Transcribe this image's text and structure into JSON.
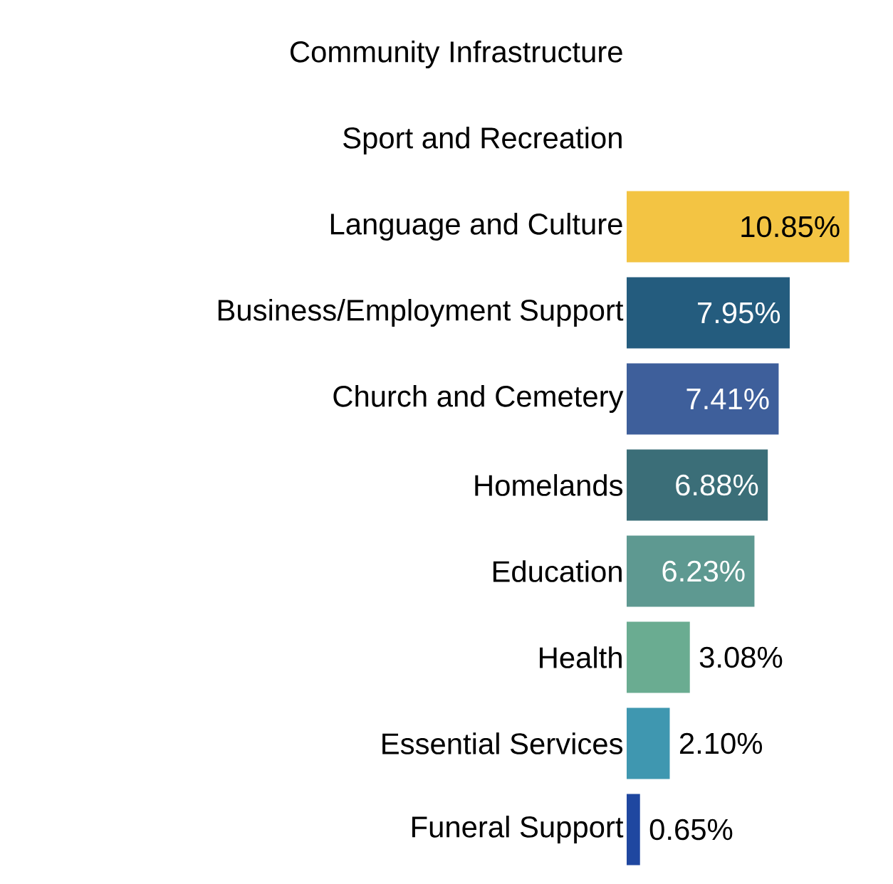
{
  "chart_data": {
    "type": "bar",
    "orientation": "horizontal",
    "tick_labels": "y",
    "categories": [
      "Community Infrastructure",
      "Sport and Recreation",
      "Language and Culture",
      "Business/Employment Support",
      "Church and Cemetery",
      "Homelands",
      "Education",
      "Health",
      "Essential Services",
      "Funeral Support"
    ],
    "values": [
      null,
      null,
      10.85,
      7.95,
      7.41,
      6.88,
      6.23,
      3.08,
      2.1,
      0.65
    ],
    "value_labels": [
      null,
      null,
      "10.85%",
      "7.95%",
      "7.41%",
      "6.88%",
      "6.23%",
      "3.08%",
      "2.10%",
      "0.65%"
    ],
    "colors": [
      "#9a442b",
      "#565a62",
      "#f3c443",
      "#245c7e",
      "#3e5f9b",
      "#3b6e78",
      "#5e9991",
      "#6aac91",
      "#3f97b0",
      "#1f47a0"
    ]
  }
}
